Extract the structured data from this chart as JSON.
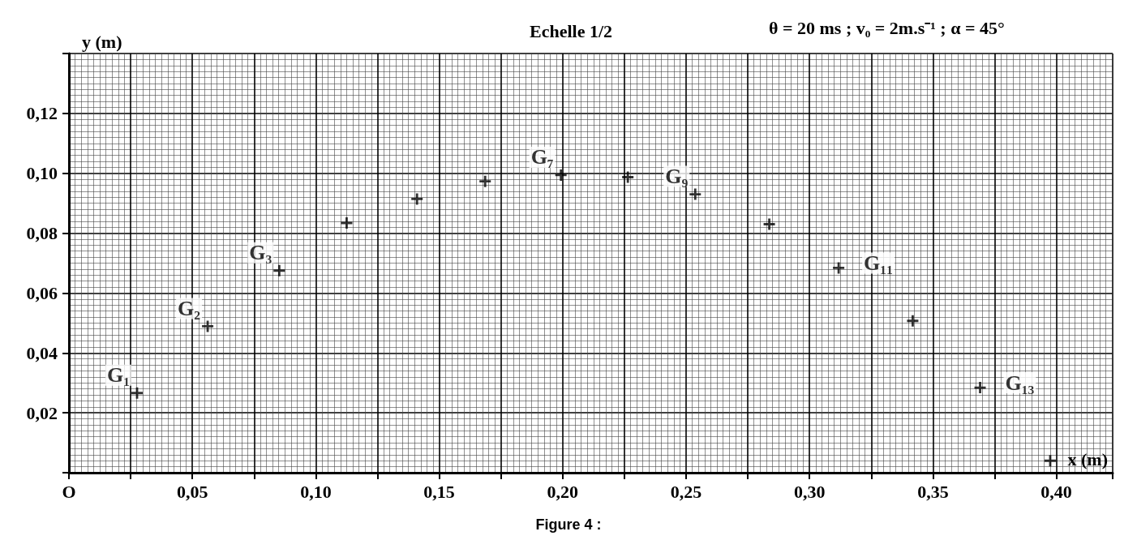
{
  "chart_data": {
    "type": "scatter",
    "title": "Echelle 1/2",
    "subtitle": "θ = 20 ms ; v₀ = 2m.s⁻¹ ; α = 45°",
    "xlabel": "x (m)",
    "ylabel": "y (m)",
    "x": [
      0.0276,
      0.0562,
      0.0852,
      0.1125,
      0.141,
      0.1686,
      0.1993,
      0.2264,
      0.2537,
      0.2837,
      0.3118,
      0.3418,
      0.3691,
      0.3975
    ],
    "series": [
      {
        "color": "#000000",
        "values": [
          0.0266,
          0.0489,
          0.0675,
          0.0834,
          0.0914,
          0.0973,
          0.0994,
          0.0987,
          0.093,
          0.083,
          0.0684,
          0.0507,
          0.0284,
          0.004
        ]
      }
    ],
    "xlim": [
      0,
      0.4228
    ],
    "ylim": [
      0,
      0.14
    ],
    "xticks": [
      {
        "value": 0,
        "label": "O"
      },
      {
        "value": 0.025,
        "label": null
      },
      {
        "value": 0.05,
        "label": "0,05"
      },
      {
        "value": 0.075,
        "label": null
      },
      {
        "value": 0.1,
        "label": "0,10"
      },
      {
        "value": 0.125,
        "label": null
      },
      {
        "value": 0.15,
        "label": "0,15"
      },
      {
        "value": 0.175,
        "label": null
      },
      {
        "value": 0.2,
        "label": "0,20"
      },
      {
        "value": 0.225,
        "label": null
      },
      {
        "value": 0.25,
        "label": "0,25"
      },
      {
        "value": 0.275,
        "label": null
      },
      {
        "value": 0.3,
        "label": "0,30"
      },
      {
        "value": 0.325,
        "label": null
      },
      {
        "value": 0.35,
        "label": "0,35"
      },
      {
        "value": 0.375,
        "label": null
      },
      {
        "value": 0.4,
        "label": "0,40"
      }
    ],
    "yticks": [
      {
        "value": 0,
        "label": null
      },
      {
        "value": 0.02,
        "label": "0,02"
      },
      {
        "value": 0.04,
        "label": "0,04"
      },
      {
        "value": 0.06,
        "label": "0,06"
      },
      {
        "value": 0.08,
        "label": "0,08"
      },
      {
        "value": 0.1,
        "label": "0,10"
      },
      {
        "value": 0.12,
        "label": "0,12"
      },
      {
        "value": 0.14,
        "label": null
      }
    ],
    "grid": true,
    "marker": "cross",
    "annotations": [
      {
        "text": "G₁",
        "x": 0.0276,
        "y": 0.0266
      },
      {
        "text": "G₂",
        "x": 0.0562,
        "y": 0.0489
      },
      {
        "text": "G₃",
        "x": 0.0852,
        "y": 0.0675
      },
      {
        "text": "G₇",
        "x": 0.1993,
        "y": 0.0994
      },
      {
        "text": "G₉",
        "x": 0.2537,
        "y": 0.093
      },
      {
        "text": "G₁₁",
        "x": 0.3118,
        "y": 0.0684
      },
      {
        "text": "G₁₃",
        "x": 0.3691,
        "y": 0.0284
      },
      "Figure 4 :"
    ]
  }
}
